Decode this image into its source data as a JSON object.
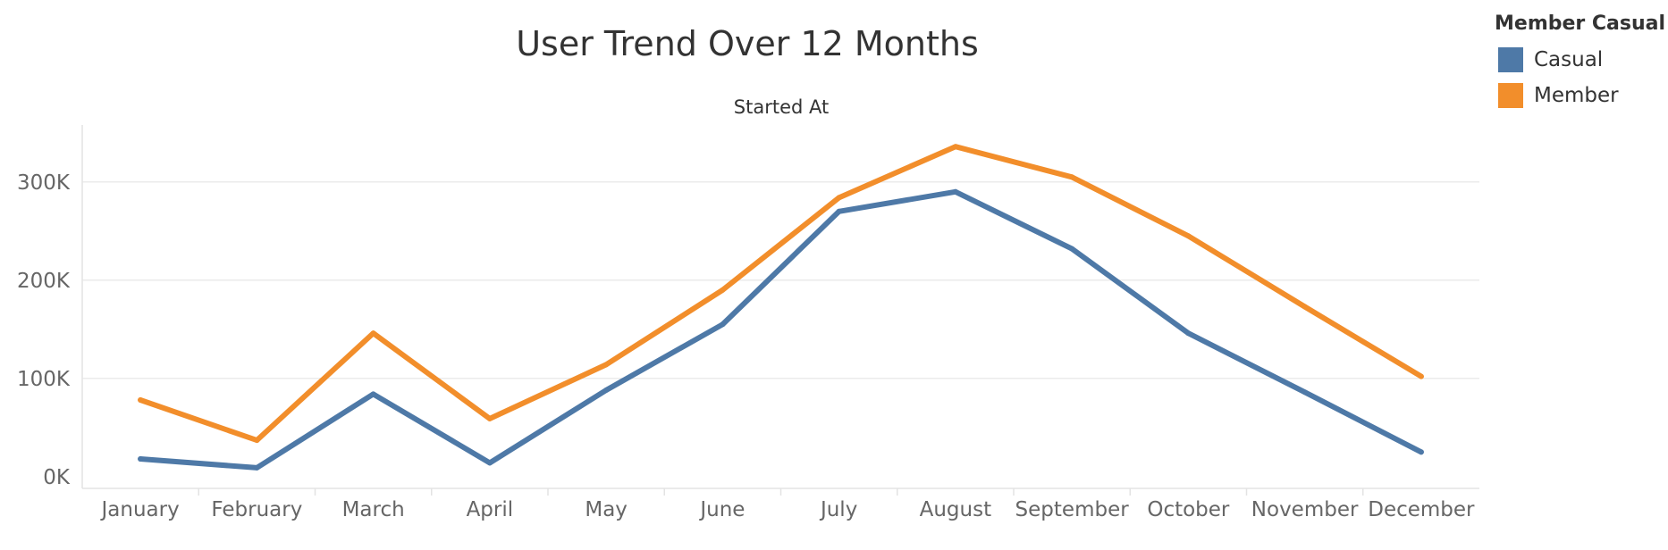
{
  "chart_data": {
    "type": "line",
    "title": "User Trend Over 12 Months",
    "column_header": "Started At",
    "xlabel": "",
    "ylabel": "",
    "categories": [
      "January",
      "February",
      "March",
      "April",
      "May",
      "June",
      "July",
      "August",
      "September",
      "October",
      "November",
      "December"
    ],
    "y_ticks": [
      {
        "value": 0,
        "label": "0K"
      },
      {
        "value": 100000,
        "label": "100K"
      },
      {
        "value": 200000,
        "label": "200K"
      },
      {
        "value": 300000,
        "label": "300K"
      }
    ],
    "ylim": [
      -12000,
      358000
    ],
    "grid": true,
    "legend_title": "Member Casual",
    "legend_position": "top-right",
    "series": [
      {
        "name": "Casual",
        "color": "#4e79a7",
        "values": [
          18000,
          9000,
          84000,
          14000,
          88000,
          155000,
          270000,
          290000,
          232000,
          146000,
          86000,
          25000
        ]
      },
      {
        "name": "Member",
        "color": "#f28e2b",
        "values": [
          78000,
          37000,
          146000,
          59000,
          114000,
          190000,
          284000,
          336000,
          305000,
          245000,
          173000,
          102000
        ]
      }
    ]
  }
}
